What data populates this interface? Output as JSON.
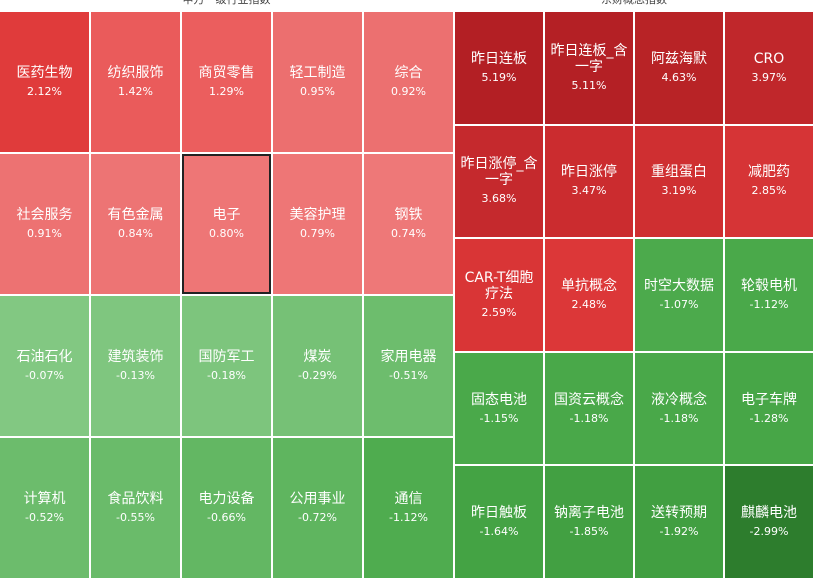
{
  "panels": [
    {
      "title": "申万一级行业指数",
      "columns": 5,
      "cells": [
        {
          "name": "医药生物",
          "change": "2.12%",
          "color": "#e03b3b"
        },
        {
          "name": "纺织服饰",
          "change": "1.42%",
          "color": "#ea5b5b"
        },
        {
          "name": "商贸零售",
          "change": "1.29%",
          "color": "#eb5e5e"
        },
        {
          "name": "轻工制造",
          "change": "0.95%",
          "color": "#ec6f6f"
        },
        {
          "name": "综合",
          "change": "0.92%",
          "color": "#ec7070"
        },
        {
          "name": "社会服务",
          "change": "0.91%",
          "color": "#ed7272"
        },
        {
          "name": "有色金属",
          "change": "0.84%",
          "color": "#ed7474"
        },
        {
          "name": "电子",
          "change": "0.80%",
          "color": "#ee7676",
          "selected": true
        },
        {
          "name": "美容护理",
          "change": "0.79%",
          "color": "#ee7676"
        },
        {
          "name": "钢铁",
          "change": "0.74%",
          "color": "#ee7878"
        },
        {
          "name": "石油石化",
          "change": "-0.07%",
          "color": "#82c882"
        },
        {
          "name": "建筑装饰",
          "change": "-0.13%",
          "color": "#7fc67f"
        },
        {
          "name": "国防军工",
          "change": "-0.18%",
          "color": "#7dc57d"
        },
        {
          "name": "煤炭",
          "change": "-0.29%",
          "color": "#76c176"
        },
        {
          "name": "家用电器",
          "change": "-0.51%",
          "color": "#6dbd6d"
        },
        {
          "name": "计算机",
          "change": "-0.52%",
          "color": "#6cbc6c"
        },
        {
          "name": "食品饮料",
          "change": "-0.55%",
          "color": "#6abb6a"
        },
        {
          "name": "电力设备",
          "change": "-0.66%",
          "color": "#63b763"
        },
        {
          "name": "公用事业",
          "change": "-0.72%",
          "color": "#5fb55f"
        },
        {
          "name": "通信",
          "change": "-1.12%",
          "color": "#4fac4f"
        }
      ]
    },
    {
      "title": "东财概念指数",
      "columns": 4,
      "cells": [
        {
          "name": "昨日连板",
          "change": "5.19%",
          "color": "#b31f24"
        },
        {
          "name": "昨日连板_含一字",
          "change": "5.11%",
          "color": "#b42025"
        },
        {
          "name": "阿兹海默",
          "change": "4.63%",
          "color": "#b82326"
        },
        {
          "name": "CRO",
          "change": "3.97%",
          "color": "#c0272b"
        },
        {
          "name": "昨日涨停_含一字",
          "change": "3.68%",
          "color": "#c5292d"
        },
        {
          "name": "昨日涨停",
          "change": "3.47%",
          "color": "#cb2c2f"
        },
        {
          "name": "重组蛋白",
          "change": "3.19%",
          "color": "#cf2f31"
        },
        {
          "name": "减肥药",
          "change": "2.85%",
          "color": "#d63436"
        },
        {
          "name": "CAR-T细胞疗法",
          "change": "2.59%",
          "color": "#d93536"
        },
        {
          "name": "单抗概念",
          "change": "2.48%",
          "color": "#dc3738"
        },
        {
          "name": "时空大数据",
          "change": "-1.07%",
          "color": "#4caa4c"
        },
        {
          "name": "轮毂电机",
          "change": "-1.12%",
          "color": "#4aa94a"
        },
        {
          "name": "固态电池",
          "change": "-1.15%",
          "color": "#4aa94a"
        },
        {
          "name": "国资云概念",
          "change": "-1.18%",
          "color": "#49a849"
        },
        {
          "name": "液冷概念",
          "change": "-1.18%",
          "color": "#49a849"
        },
        {
          "name": "电子车牌",
          "change": "-1.28%",
          "color": "#47a647"
        },
        {
          "name": "昨日触板",
          "change": "-1.64%",
          "color": "#44a344"
        },
        {
          "name": "钠离子电池",
          "change": "-1.85%",
          "color": "#42a042"
        },
        {
          "name": "送转预期",
          "change": "-1.92%",
          "color": "#419f41"
        },
        {
          "name": "麒麟电池",
          "change": "-2.99%",
          "color": "#2d7d2d"
        }
      ]
    }
  ]
}
